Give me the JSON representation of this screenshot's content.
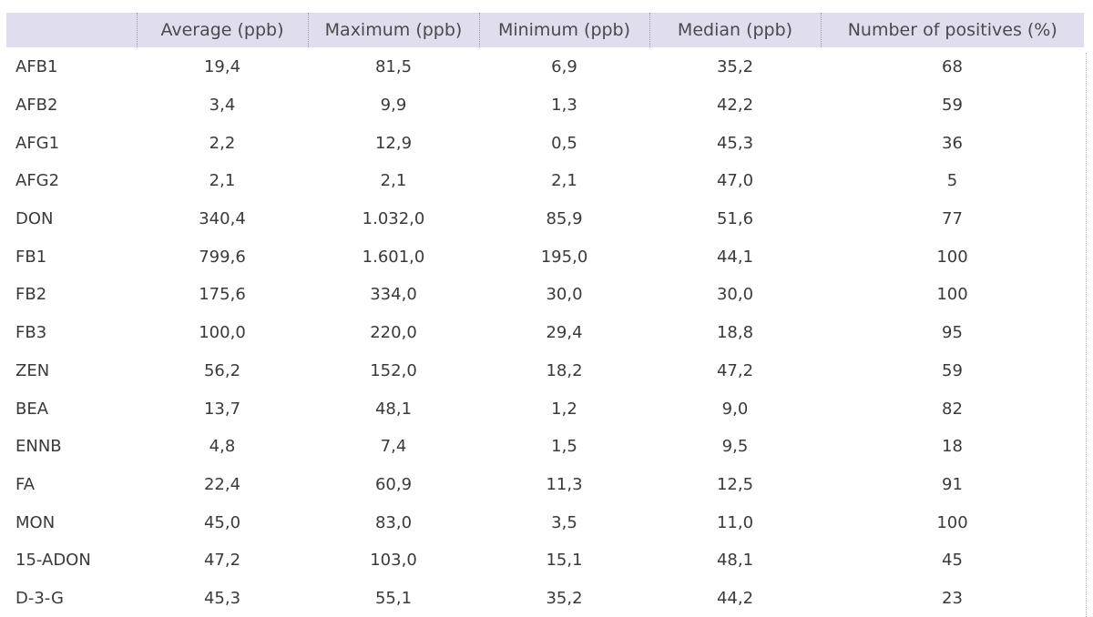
{
  "table": {
    "headers": [
      "",
      "Average (ppb)",
      "Maximum (ppb)",
      "Minimum (ppb)",
      "Median (ppb)",
      "Number of positives (%)"
    ],
    "rows": [
      [
        "AFB1",
        "19,4",
        "81,5",
        "6,9",
        "35,2",
        "68"
      ],
      [
        "AFB2",
        "3,4",
        "9,9",
        "1,3",
        "42,2",
        "59"
      ],
      [
        "AFG1",
        "2,2",
        "12,9",
        "0,5",
        "45,3",
        "36"
      ],
      [
        "AFG2",
        "2,1",
        "2,1",
        "2,1",
        "47,0",
        "5"
      ],
      [
        "DON",
        "340,4",
        "1.032,0",
        "85,9",
        "51,6",
        "77"
      ],
      [
        "FB1",
        "799,6",
        "1.601,0",
        "195,0",
        "44,1",
        "100"
      ],
      [
        "FB2",
        "175,6",
        "334,0",
        "30,0",
        "30,0",
        "100"
      ],
      [
        "FB3",
        "100,0",
        "220,0",
        "29,4",
        "18,8",
        "95"
      ],
      [
        "ZEN",
        "56,2",
        "152,0",
        "18,2",
        "47,2",
        "59"
      ],
      [
        "BEA",
        "13,7",
        "48,1",
        "1,2",
        "9,0",
        "82"
      ],
      [
        "ENNB",
        "4,8",
        "7,4",
        "1,5",
        "9,5",
        "18"
      ],
      [
        "FA",
        "22,4",
        "60,9",
        "11,3",
        "12,5",
        "91"
      ],
      [
        "MON",
        "45,0",
        "83,0",
        "3,5",
        "11,0",
        "100"
      ],
      [
        "15-ADON",
        "47,2",
        "103,0",
        "15,1",
        "48,1",
        "45"
      ],
      [
        "D-3-G",
        "45,3",
        "55,1",
        "35,2",
        "44,2",
        "23"
      ]
    ]
  },
  "colors": {
    "header_bg": "#e0ddef",
    "text": "#3a3a3a"
  }
}
